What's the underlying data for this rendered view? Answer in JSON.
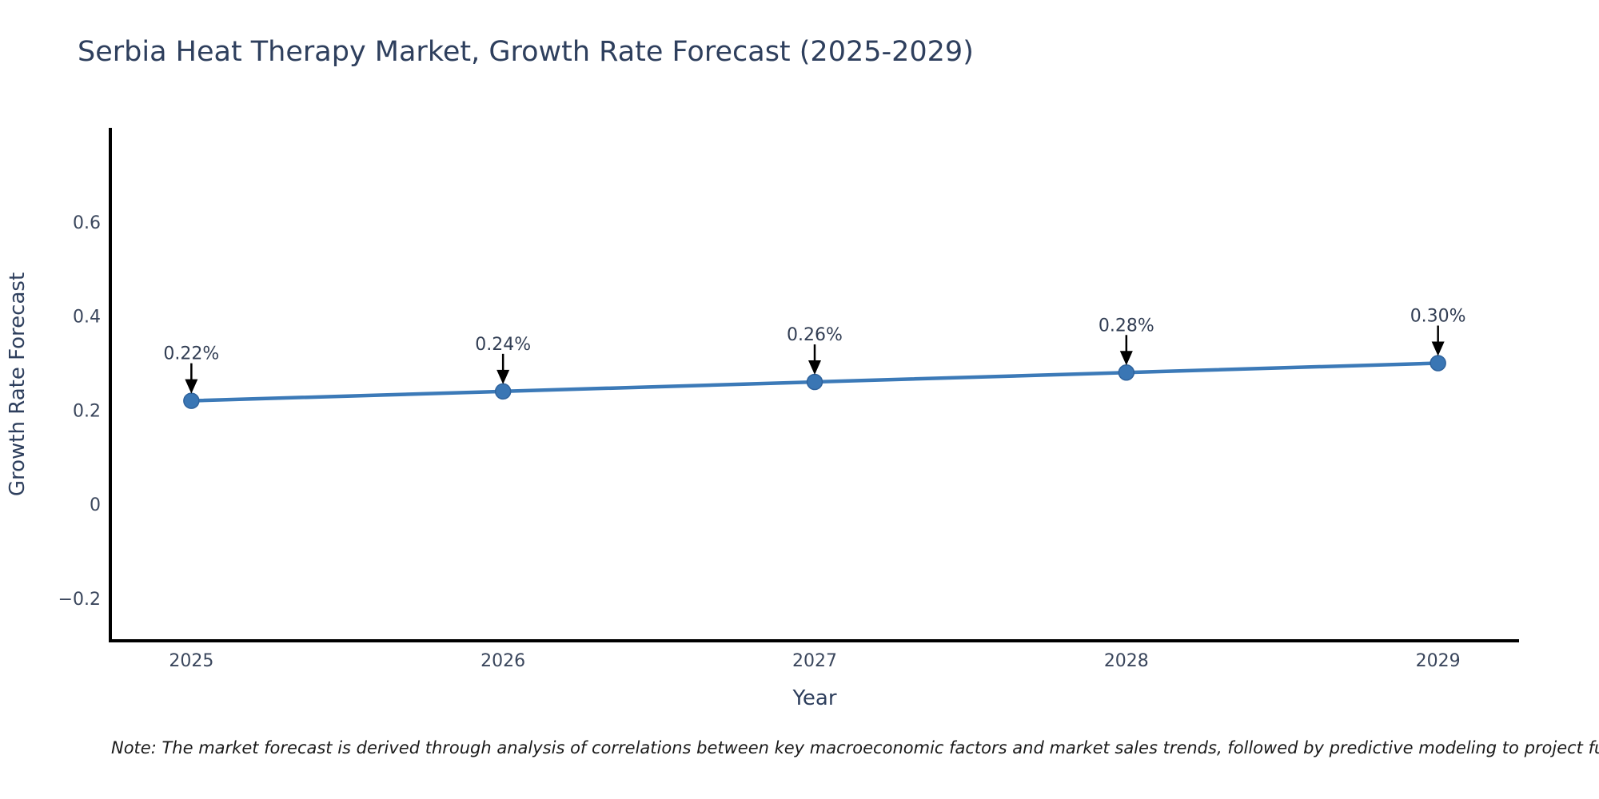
{
  "chart_data": {
    "type": "line",
    "title": "Serbia Heat Therapy Market, Growth Rate Forecast (2025-2029)",
    "xlabel": "Year",
    "ylabel": "Growth Rate Forecast",
    "categories": [
      2025,
      2026,
      2027,
      2028,
      2029
    ],
    "series": [
      {
        "name": "Growth Rate Forecast",
        "values": [
          0.22,
          0.24,
          0.26,
          0.28,
          0.3
        ],
        "point_labels": [
          "0.22%",
          "0.24%",
          "0.26%",
          "0.28%",
          "0.30%"
        ]
      }
    ],
    "y_ticks": [
      -0.2,
      0,
      0.2,
      0.4,
      0.6
    ],
    "y_tick_labels": [
      "−0.2",
      "0",
      "0.2",
      "0.4",
      "0.6"
    ],
    "xlim": [
      2024.74,
      2029.26
    ],
    "ylim": [
      -0.29,
      0.8
    ],
    "grid": false,
    "legend_position": "none",
    "annotations": "arrow-down-to-each-point"
  },
  "footnote": {
    "text": "Note: The market forecast is derived through analysis of correlations between key macroeconomic factors and market sales trends, followed by predictive modeling to project future sa"
  },
  "colors": {
    "line": "#3c7ab8",
    "marker_fill": "#3a76b4",
    "marker_edge": "#2f639d",
    "axis_line": "#000000",
    "title_text": "#2e3f5d",
    "axis_title_text": "#2e3f5d",
    "tick_text": "#3a465c",
    "annotation_text": "#323e54",
    "arrow": "#000000",
    "background": "#ffffff"
  }
}
